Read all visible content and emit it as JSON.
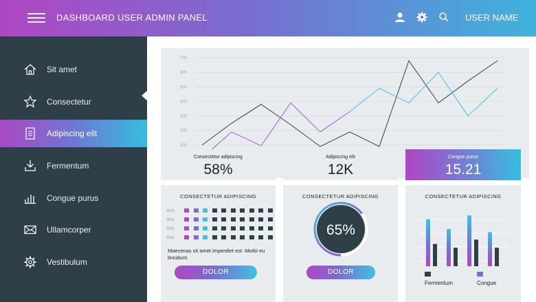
{
  "header": {
    "title": "DASHBOARD USER ADMIN PANEL",
    "username": "USER NAME",
    "icons": [
      "menu-icon",
      "user-icon",
      "gear-icon",
      "search-icon"
    ]
  },
  "sidebar": {
    "items": [
      {
        "label": "Sit amet",
        "icon": "home-icon",
        "active": false
      },
      {
        "label": "Consectetur",
        "icon": "star-icon",
        "active": false
      },
      {
        "label": "Adipiscing elit",
        "icon": "document-icon",
        "active": true
      },
      {
        "label": "Fermentum",
        "icon": "download-icon",
        "active": false
      },
      {
        "label": "Congue purus",
        "icon": "bar-chart-icon",
        "active": false
      },
      {
        "label": "Ullamcorper",
        "icon": "mail-icon",
        "active": false
      },
      {
        "label": "Vestibulum",
        "icon": "gear-icon",
        "active": false
      }
    ]
  },
  "line_chart": {
    "yticks": [
      "700",
      "600",
      "500",
      "400",
      "300",
      "200",
      "100"
    ]
  },
  "stats": [
    {
      "label": "Consectetur adipiscing",
      "value": "58%"
    },
    {
      "label": "Adipiscing elit",
      "value": "12K"
    },
    {
      "label": "Congue purus",
      "value": "15.21"
    }
  ],
  "cards": {
    "left": {
      "title": "CONSECTETUR ADIPISCING",
      "years": [
        "2019",
        "2016",
        "2015",
        "2010"
      ],
      "text": "Maecenas sit amet imperdiet est. Morbi eu tincidunt.",
      "button": "DOLOR"
    },
    "middle": {
      "title": "CONSECTETUR ADIPISCING",
      "percent": "65%",
      "progress": 0.65,
      "button": "DOLOR"
    },
    "right": {
      "title": "CONSECTETUR ADIPISCING",
      "legend": [
        "Fermentum",
        "Congue"
      ]
    }
  },
  "colors": {
    "purple": "#b046c4",
    "violet": "#7a6cd0",
    "cyan": "#3fc1df",
    "dark": "#2f3f47",
    "panel": "#e9ecef"
  },
  "chart_data": [
    {
      "type": "line",
      "yticks": [
        100,
        200,
        300,
        400,
        500,
        600,
        700
      ],
      "ylim": [
        0,
        700
      ],
      "grid": true,
      "series": [
        {
          "values": [
            100,
            250,
            380,
            240,
            90,
            190,
            90,
            680,
            390,
            540,
            680
          ]
        },
        {
          "values": [
            10,
            190,
            95,
            390,
            190,
            330,
            490,
            390,
            600,
            300,
            490
          ]
        }
      ]
    },
    {
      "type": "bar",
      "series": [
        {
          "name": "Fermentum",
          "values": [
            0.36,
            0.3,
            0.43,
            0.3
          ]
        },
        {
          "name": "Congue",
          "values": [
            0.76,
            0.6,
            0.82,
            0.55
          ]
        }
      ]
    }
  ]
}
